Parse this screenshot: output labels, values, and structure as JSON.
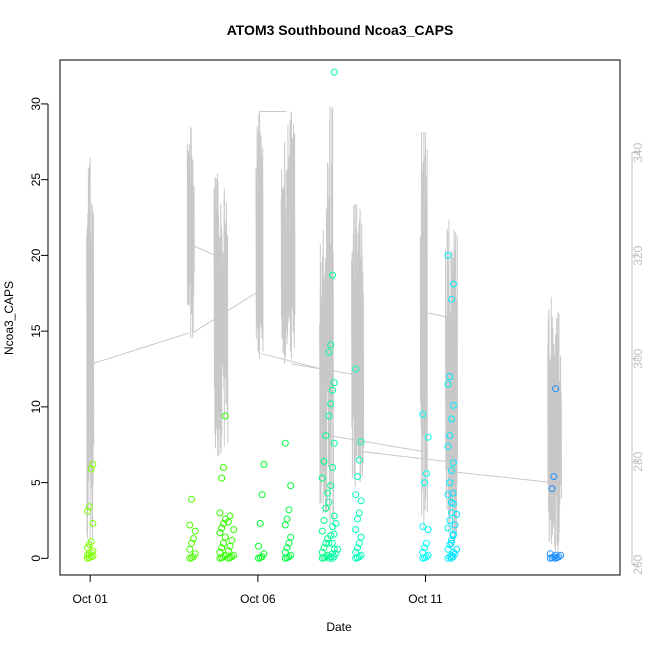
{
  "chart_data": {
    "type": "scatter",
    "title": "ATOM3 Southbound Ncoa3_CAPS",
    "xlabel": "Date",
    "ylabel": "Ncoa3_CAPS",
    "x_ticks": [
      {
        "label": "Oct 01",
        "day": 1
      },
      {
        "label": "Oct 06",
        "day": 6
      },
      {
        "label": "Oct 11",
        "day": 11
      }
    ],
    "x_range_days": [
      0.1,
      16.8
    ],
    "ylim": [
      -1.1,
      32.9
    ],
    "y_ticks": [
      0,
      5,
      10,
      15,
      20,
      25,
      30
    ],
    "secondary_axis": {
      "series_color": "#c8c8c8",
      "range": [
        258,
        358
      ],
      "ticks": [
        260,
        280,
        300,
        320,
        340
      ]
    },
    "point_series": [
      {
        "day": 1.0,
        "color": "#7fff00",
        "values": [
          0,
          0.05,
          0.1,
          0.15,
          0.2,
          0.3,
          0.4,
          0.5,
          0.7,
          0.9,
          1.1,
          2.3,
          3.1,
          3.4,
          5.9,
          6.2
        ]
      },
      {
        "day": 4.05,
        "color": "#4cff00",
        "values": [
          0,
          0.05,
          0.1,
          0.3,
          0.6,
          1.0,
          1.3,
          1.8,
          2.2,
          3.9
        ]
      },
      {
        "day": 4.95,
        "color": "#33ff00",
        "values": [
          0,
          0.05,
          0.1,
          0.2,
          0.4,
          0.7,
          1.0,
          1.4,
          1.7,
          2.0,
          2.3,
          2.6,
          3.0,
          5.3,
          6.0,
          9.4
        ]
      },
      {
        "day": 5.2,
        "color": "#33ff00",
        "values": [
          0,
          0.05,
          0.1,
          0.2,
          0.5,
          0.8,
          1.2,
          1.9,
          2.4,
          2.8
        ]
      },
      {
        "day": 6.1,
        "color": "#00ff22",
        "values": [
          0,
          0.05,
          0.1,
          0.3,
          0.8,
          2.3,
          4.2,
          6.2
        ]
      },
      {
        "day": 6.9,
        "color": "#00ff44",
        "values": [
          0,
          0.05,
          0.1,
          0.2,
          0.4,
          0.7,
          1.0,
          1.4,
          2.2,
          2.6,
          3.2,
          4.8,
          7.6
        ]
      },
      {
        "day": 8.0,
        "color": "#00ff88",
        "values": [
          0,
          0.05,
          0.1,
          0.2,
          0.4,
          0.7,
          1.0,
          1.3,
          1.8,
          2.5,
          3.3,
          4.3,
          5.3,
          6.4,
          8.1
        ]
      },
      {
        "day": 8.2,
        "color": "#00ff99",
        "values": [
          0,
          0.1,
          0.3,
          0.6,
          1.0,
          1.5,
          2.1,
          2.8,
          3.7,
          4.8,
          6.0,
          7.6,
          9.4,
          10.2,
          11.1,
          11.6,
          13.6,
          14.1,
          18.7,
          32.1
        ]
      },
      {
        "day": 8.3,
        "color": "#00ffaa",
        "values": [
          0,
          0.1,
          0.3,
          0.6,
          1.0,
          1.6,
          2.3
        ]
      },
      {
        "day": 9.0,
        "color": "#00ffbb",
        "values": [
          0,
          0.05,
          0.1,
          0.2,
          0.4,
          0.7,
          1.0,
          1.4,
          1.9,
          2.6,
          3.0,
          3.8,
          4.2,
          5.4,
          6.5,
          7.7,
          12.5
        ]
      },
      {
        "day": 11.0,
        "color": "#00ffee",
        "values": [
          0,
          0.05,
          0.1,
          0.2,
          0.4,
          0.7,
          1.0,
          1.9,
          2.1,
          5.0,
          5.6,
          8.0,
          9.5
        ]
      },
      {
        "day": 11.75,
        "color": "#00eeff",
        "values": [
          0,
          0.1,
          0.2,
          0.4,
          0.6,
          0.9,
          1.2,
          1.6,
          2.0,
          2.5,
          3.0,
          3.6,
          4.2,
          5.0,
          5.8,
          6.3,
          7.4,
          8.1,
          9.2,
          10.1,
          11.5,
          12.0,
          17.1,
          18.1,
          20.0
        ]
      },
      {
        "day": 11.85,
        "color": "#00e0ff",
        "values": [
          0,
          0.1,
          0.3,
          0.6,
          1.0,
          1.5,
          2.2,
          2.9,
          3.7,
          4.3
        ]
      },
      {
        "day": 14.8,
        "color": "#1e90ff",
        "values": [
          0,
          0.05,
          0.1,
          0.2,
          0.3,
          4.6,
          5.4,
          11.2
        ]
      },
      {
        "day": 14.95,
        "color": "#1e90ff",
        "values": [
          0,
          0.05,
          0.1,
          0.2
        ]
      }
    ],
    "grey_spikes": [
      {
        "day": 1.0,
        "min": 263,
        "max": 339
      },
      {
        "day": 4.0,
        "min": 304,
        "max": 345
      },
      {
        "day": 4.8,
        "min": 281,
        "max": 336
      },
      {
        "day": 5.0,
        "min": 283,
        "max": 333
      },
      {
        "day": 6.05,
        "min": 300,
        "max": 348
      },
      {
        "day": 6.8,
        "min": 299,
        "max": 342
      },
      {
        "day": 7.0,
        "min": 300,
        "max": 348
      },
      {
        "day": 7.95,
        "min": 270,
        "max": 325
      },
      {
        "day": 8.15,
        "min": 268,
        "max": 349
      },
      {
        "day": 8.9,
        "min": 275,
        "max": 330
      },
      {
        "day": 9.05,
        "min": 276,
        "max": 329
      },
      {
        "day": 10.95,
        "min": 267,
        "max": 344
      },
      {
        "day": 11.7,
        "min": 266,
        "max": 327
      },
      {
        "day": 11.85,
        "min": 264,
        "max": 325
      },
      {
        "day": 14.75,
        "min": 264,
        "max": 312
      },
      {
        "day": 14.95,
        "min": 262,
        "max": 309
      }
    ],
    "grey_connectors": [
      {
        "x": [
          1.05,
          3.95
        ],
        "y": [
          299,
          305
        ]
      },
      {
        "x": [
          4.05,
          4.75
        ],
        "y": [
          322,
          320
        ]
      },
      {
        "x": [
          4.05,
          6.0
        ],
        "y": [
          305,
          313
        ]
      },
      {
        "x": [
          6.05,
          6.85
        ],
        "y": [
          348,
          348
        ]
      },
      {
        "x": [
          6.1,
          7.9
        ],
        "y": [
          301,
          298
        ]
      },
      {
        "x": [
          7.0,
          8.8
        ],
        "y": [
          299,
          297
        ]
      },
      {
        "x": [
          8.2,
          10.9
        ],
        "y": [
          285,
          282
        ]
      },
      {
        "x": [
          9.05,
          11.7
        ],
        "y": [
          282,
          280
        ]
      },
      {
        "x": [
          11.0,
          11.7
        ],
        "y": [
          309,
          308
        ]
      },
      {
        "x": [
          11.9,
          14.7
        ],
        "y": [
          278,
          276
        ]
      }
    ]
  }
}
